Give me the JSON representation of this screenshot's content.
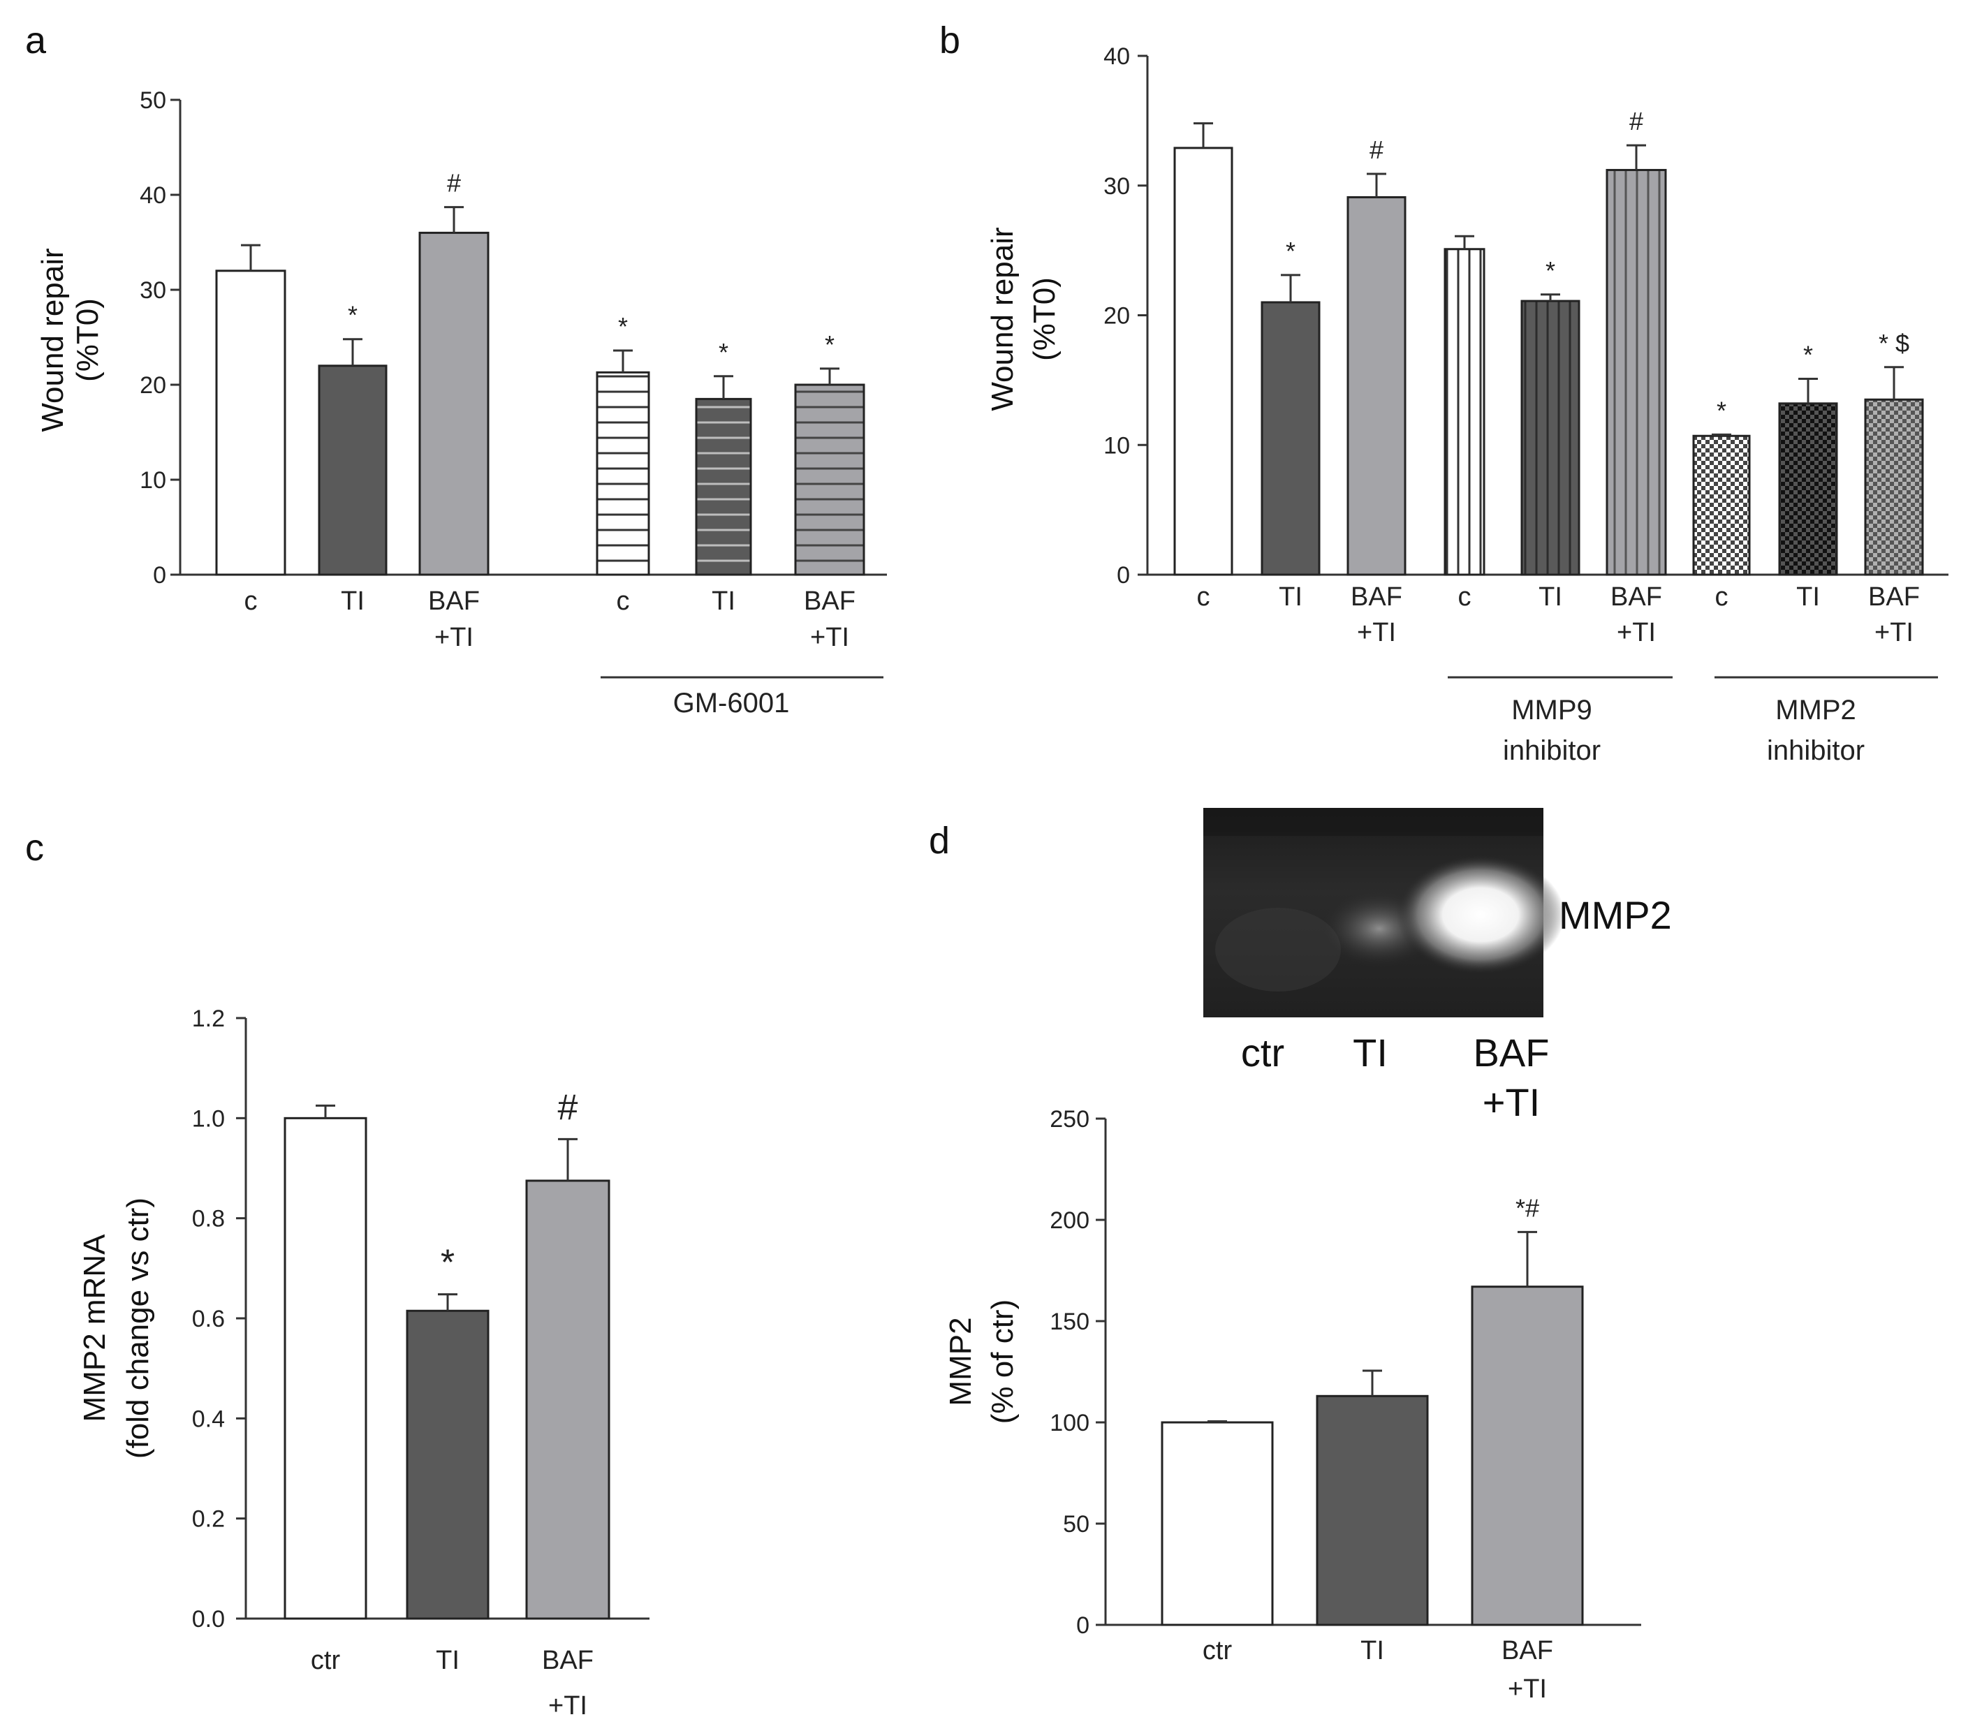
{
  "panels": {
    "a": {
      "letter": "a",
      "ylabel_line1": "Wound repair",
      "ylabel_line2": "(%T0)",
      "group_label": "GM-6001"
    },
    "b": {
      "letter": "b",
      "ylabel_line1": "Wound repair",
      "ylabel_line2": "(%T0)",
      "group1_label_line1": "MMP9",
      "group1_label_line2": "inhibitor",
      "group2_label_line1": "MMP2",
      "group2_label_line1_full": "MMP2",
      "group2_label_line2": "inhibitor"
    },
    "c": {
      "letter": "c",
      "ylabel_line1": "MMP2 mRNA",
      "ylabel_line2": "(fold change vs ctr)"
    },
    "d": {
      "letter": "d",
      "ylabel_line1": "MMP2",
      "ylabel_line2": "(% of ctr)",
      "blot_label": "MMP2",
      "blot_lane_labels": [
        "ctr",
        "TI",
        "BAF",
        "+TI"
      ]
    }
  },
  "colors": {
    "white": "#ffffff",
    "dark": "#5a5a5a",
    "light": "#a4a4a8",
    "check_dark": "#1a1a1a"
  },
  "chart_data": [
    {
      "id": "a",
      "type": "bar",
      "ylim": [
        0,
        50
      ],
      "yticks": [
        0,
        10,
        20,
        30,
        40,
        50
      ],
      "categories": [
        {
          "line1": "c",
          "line2": ""
        },
        {
          "line1": "TI",
          "line2": ""
        },
        {
          "line1": "BAF",
          "line2": "+TI"
        },
        {
          "line1": "c",
          "line2": ""
        },
        {
          "line1": "TI",
          "line2": ""
        },
        {
          "line1": "BAF",
          "line2": "+TI"
        }
      ],
      "values": [
        32,
        22,
        36,
        21.3,
        18.5,
        20
      ],
      "errors": [
        2.7,
        2.8,
        2.7,
        2.3,
        2.4,
        1.7
      ],
      "significance": [
        "",
        "*",
        "#",
        "*",
        "*",
        "*"
      ],
      "fills": [
        "white",
        "dark",
        "light",
        "hstripe-white",
        "hstripe-dark",
        "hstripe-light"
      ]
    },
    {
      "id": "b",
      "type": "bar",
      "ylim": [
        0,
        40
      ],
      "yticks": [
        0,
        10,
        20,
        30,
        40
      ],
      "categories": [
        {
          "line1": "c",
          "line2": ""
        },
        {
          "line1": "TI",
          "line2": ""
        },
        {
          "line1": "BAF",
          "line2": "+TI"
        },
        {
          "line1": "c",
          "line2": ""
        },
        {
          "line1": "TI",
          "line2": ""
        },
        {
          "line1": "BAF",
          "line2": "+TI"
        },
        {
          "line1": "c",
          "line2": ""
        },
        {
          "line1": "TI",
          "line2": ""
        },
        {
          "line1": "BAF",
          "line2": "+TI"
        }
      ],
      "values": [
        32.9,
        21,
        29.1,
        25.1,
        21.1,
        31.2,
        10.7,
        13.2,
        13.5
      ],
      "errors": [
        1.9,
        2.1,
        1.8,
        1.0,
        0.5,
        1.9,
        0.1,
        1.9,
        2.5
      ],
      "significance": [
        "",
        "*",
        "#",
        "",
        "*",
        "#",
        "*",
        "*",
        "* $"
      ],
      "fills": [
        "white",
        "dark",
        "light",
        "vstripe-white",
        "vstripe-dark",
        "vstripe-light",
        "check-white",
        "check-dark",
        "check-light"
      ]
    },
    {
      "id": "c",
      "type": "bar",
      "ylim": [
        0,
        1.2
      ],
      "yticks": [
        "0.0",
        "0.2",
        "0.4",
        "0.6",
        "0.8",
        "1.0",
        "1.2"
      ],
      "categories": [
        {
          "line1": "ctr",
          "line2": ""
        },
        {
          "line1": "TI",
          "line2": ""
        },
        {
          "line1": "BAF",
          "line2": "+TI"
        }
      ],
      "values": [
        1.0,
        0.615,
        0.875
      ],
      "errors": [
        0.025,
        0.033,
        0.083
      ],
      "significance": [
        "",
        "*",
        "#"
      ],
      "fills": [
        "white",
        "dark",
        "light"
      ]
    },
    {
      "id": "d",
      "type": "bar",
      "ylim": [
        0,
        250
      ],
      "yticks": [
        0,
        50,
        100,
        150,
        200,
        250
      ],
      "categories": [
        {
          "line1": "ctr",
          "line2": ""
        },
        {
          "line1": "TI",
          "line2": ""
        },
        {
          "line1": "BAF",
          "line2": "+TI"
        }
      ],
      "values": [
        100,
        113,
        167
      ],
      "errors": [
        0.5,
        12.5,
        27
      ],
      "significance": [
        "",
        "",
        "*#"
      ],
      "fills": [
        "white",
        "dark",
        "light"
      ]
    }
  ]
}
